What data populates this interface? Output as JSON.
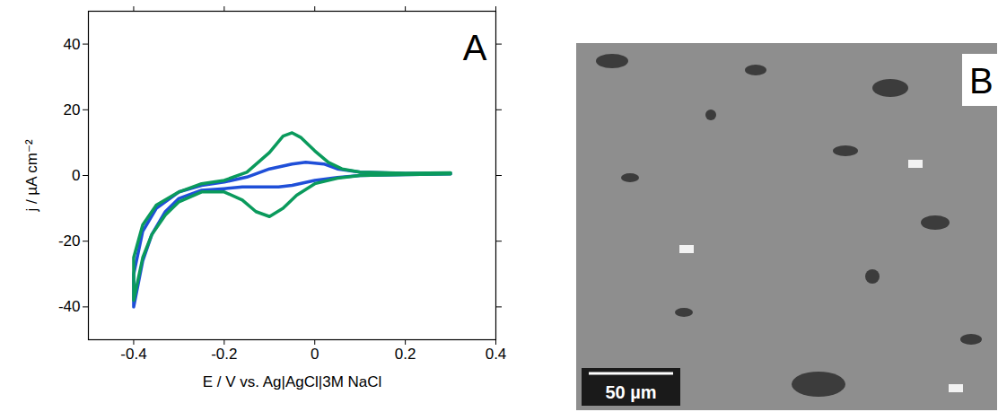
{
  "chart_data": [
    {
      "type": "line",
      "panel": "A",
      "xlabel": "E / V vs. Ag|AgCl|3M NaCl",
      "ylabel": "j / µA cm⁻²",
      "xlim": [
        -0.5,
        0.4
      ],
      "xticks": [
        -0.4,
        -0.2,
        0,
        0.2,
        0.4
      ],
      "ylim": [
        -50,
        50
      ],
      "yticks": [
        -40,
        -20,
        0,
        20,
        40
      ],
      "grid": false,
      "series": [
        {
          "color": "#1f4fd8",
          "x": [
            0.3,
            0.2,
            0.1,
            0.05,
            0,
            -0.05,
            -0.08,
            -0.12,
            -0.16,
            -0.2,
            -0.25,
            -0.3,
            -0.33,
            -0.36,
            -0.38,
            -0.4,
            -0.4,
            -0.38,
            -0.35,
            -0.3,
            -0.25,
            -0.2,
            -0.15,
            -0.1,
            -0.05,
            -0.02,
            0.02,
            0.05,
            0.1,
            0.2,
            0.3
          ],
          "values": [
            0.5,
            0.3,
            0,
            -0.6,
            -1.5,
            -3,
            -3.5,
            -3.5,
            -3.5,
            -4,
            -4.5,
            -7,
            -11,
            -18,
            -26,
            -40,
            -30,
            -17,
            -10,
            -5,
            -3,
            -2,
            -0.5,
            2,
            3.5,
            4,
            3.5,
            2,
            1,
            0.6,
            0.7
          ]
        },
        {
          "color": "#0a9a5c",
          "x": [
            0.3,
            0.2,
            0.1,
            0.05,
            0,
            -0.04,
            -0.07,
            -0.1,
            -0.13,
            -0.16,
            -0.2,
            -0.25,
            -0.3,
            -0.33,
            -0.36,
            -0.38,
            -0.4,
            -0.4,
            -0.38,
            -0.35,
            -0.3,
            -0.25,
            -0.2,
            -0.15,
            -0.1,
            -0.07,
            -0.05,
            -0.03,
            0,
            0.03,
            0.06,
            0.1,
            0.2,
            0.3
          ],
          "values": [
            0.5,
            0.3,
            0,
            -0.8,
            -2.5,
            -6,
            -10,
            -12.5,
            -11,
            -7.5,
            -5,
            -5,
            -8,
            -12,
            -18,
            -25,
            -38,
            -25,
            -15,
            -9,
            -5,
            -2.5,
            -1.5,
            1,
            7,
            12,
            13,
            11.5,
            7.5,
            4,
            2,
            1,
            0.7,
            0.8
          ]
        }
      ]
    },
    {
      "type": "image",
      "panel": "B",
      "scale_bar": "50 µm"
    }
  ]
}
